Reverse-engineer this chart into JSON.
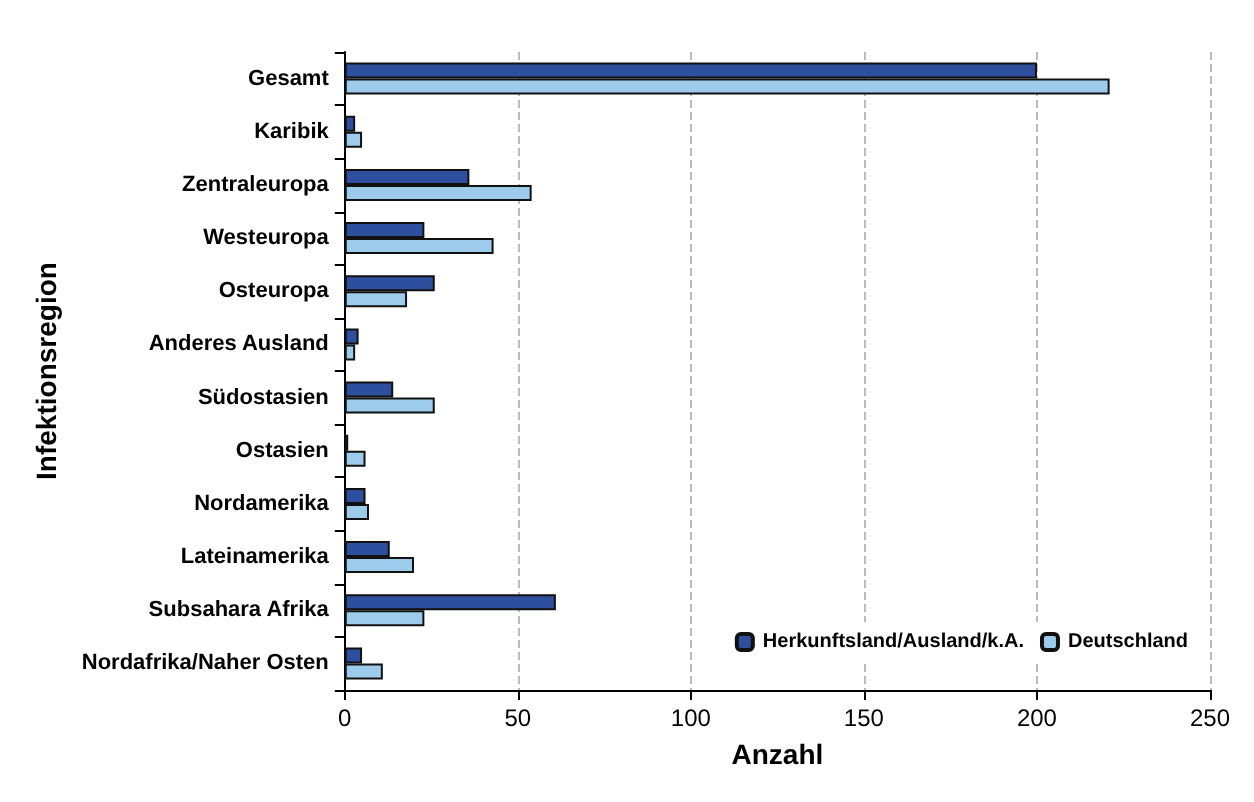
{
  "chart_data": {
    "type": "bar",
    "orientation": "horizontal",
    "xlabel": "Anzahl",
    "ylabel": "Infektionsregion",
    "categories": [
      "Gesamt",
      "Karibik",
      "Zentraleuropa",
      "Westeuropa",
      "Osteuropa",
      "Anderes Ausland",
      "Südostasien",
      "Ostasien",
      "Nordamerika",
      "Lateinamerika",
      "Subsahara Afrika",
      "Nordafrika/Naher Osten"
    ],
    "series": [
      {
        "name": "Herkunftsland/Ausland/k.A.",
        "color": "#2e4f9e",
        "values": [
          200,
          3,
          36,
          23,
          26,
          4,
          14,
          1,
          6,
          13,
          61,
          5
        ]
      },
      {
        "name": "Deutschland",
        "color": "#9ccbec",
        "values": [
          221,
          5,
          54,
          43,
          18,
          3,
          26,
          6,
          7,
          20,
          23,
          11
        ]
      }
    ],
    "xlim": [
      0,
      250
    ],
    "xticks": [
      0,
      50,
      100,
      150,
      200,
      250
    ],
    "grid": "x",
    "line_style": "dashed",
    "legend": "bottom right"
  }
}
